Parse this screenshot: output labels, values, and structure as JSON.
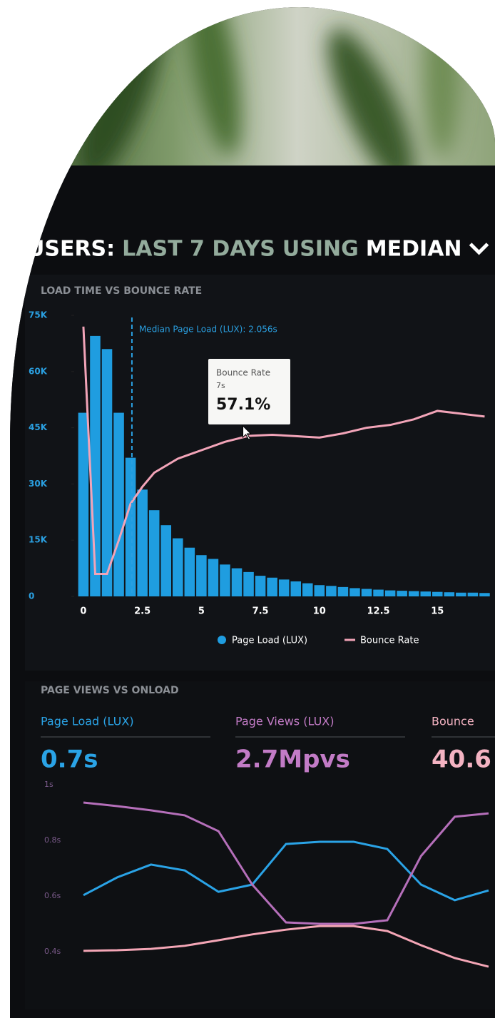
{
  "header": {
    "parts": [
      "USERS:",
      "LAST 7 DAYS",
      "USING",
      "MEDIAN"
    ]
  },
  "chart_data": [
    {
      "type": "bar",
      "title": "LOAD TIME VS BOUNCE RATE",
      "annotation": "Median Page Load (LUX): 2.056s",
      "median": 2.056,
      "x": [
        0,
        0.5,
        1,
        1.5,
        2,
        2.5,
        3,
        3.5,
        4,
        4.5,
        5,
        5.5,
        6,
        6.5,
        7,
        7.5,
        8,
        8.5,
        9,
        9.5,
        10,
        10.5,
        11,
        11.5,
        12,
        12.5,
        13,
        13.5,
        14,
        14.5,
        15,
        15.5,
        16,
        16.5,
        17
      ],
      "xlim": [
        -0.3,
        17.5
      ],
      "xticks": [
        0,
        2.5,
        5,
        7.5,
        10,
        12.5,
        15
      ],
      "ylim": [
        0,
        75000
      ],
      "yticks": [
        {
          "value": 0,
          "label": "0"
        },
        {
          "value": 15000,
          "label": "15K"
        },
        {
          "value": 30000,
          "label": "30K"
        },
        {
          "value": 45000,
          "label": "45K"
        },
        {
          "value": 60000,
          "label": "60K"
        },
        {
          "value": 75000,
          "label": "75K"
        }
      ],
      "y2lim": [
        0,
        100
      ],
      "series": [
        {
          "name": "Page Load (LUX)",
          "color": "#1f9de0",
          "values": [
            49000,
            69500,
            66000,
            49000,
            37000,
            28500,
            23000,
            19000,
            15500,
            13000,
            11000,
            10000,
            8500,
            7500,
            6500,
            5500,
            5000,
            4500,
            4000,
            3500,
            3000,
            2800,
            2500,
            2200,
            2000,
            1800,
            1600,
            1500,
            1400,
            1300,
            1200,
            1100,
            1000,
            1000,
            900
          ]
        },
        {
          "name": "Bounce Rate",
          "color": "#f2a4b8",
          "axis": "y2",
          "x": [
            0,
            0.5,
            1,
            1.5,
            2,
            2.5,
            3,
            4,
            5,
            6,
            7,
            8,
            9,
            10,
            11,
            12,
            13,
            14,
            15,
            16,
            17
          ],
          "values": [
            96,
            8,
            8,
            20,
            33,
            39,
            44,
            49,
            52,
            55,
            57.1,
            57.5,
            57,
            56.5,
            58,
            60,
            61,
            63,
            66,
            65,
            64
          ]
        }
      ],
      "tooltip": {
        "title": "Bounce Rate",
        "x": 7,
        "x_label": "7s",
        "value": 57.1,
        "value_label": "57.1%"
      }
    },
    {
      "type": "line",
      "title": "PAGE VIEWS VS ONLOAD",
      "stats": [
        {
          "label": "Page Load (LUX)",
          "value_label": "0.7s",
          "color": "#2aa3e6"
        },
        {
          "label": "Page Views (LUX)",
          "value_label": "2.7Mpvs",
          "color": "#c27bc6"
        },
        {
          "label": "Bounce",
          "value_label": "40.6",
          "color": "#f4b3c2"
        }
      ],
      "categories": [
        null,
        null,
        null,
        null,
        null,
        null,
        null,
        null,
        null,
        null,
        null,
        null,
        null
      ],
      "ylim": [
        0.3,
        1.0
      ],
      "yticks": [
        {
          "value": 1,
          "label": "1s"
        },
        {
          "value": 0.8,
          "label": "0.8s"
        },
        {
          "value": 0.6,
          "label": "0.6s"
        },
        {
          "value": 0.4,
          "label": "0.4s"
        }
      ],
      "series": [
        {
          "color": "#2aa3e6",
          "values": [
            0.603,
            0.667,
            0.713,
            0.692,
            0.615,
            0.641,
            0.787,
            0.795,
            0.795,
            0.769,
            0.641,
            0.585,
            0.62
          ]
        },
        {
          "color": "#b56fba",
          "values": [
            0.936,
            0.923,
            0.908,
            0.89,
            0.833,
            0.641,
            0.505,
            0.5,
            0.5,
            0.513,
            0.744,
            0.885,
            0.897
          ]
        },
        {
          "color": "#f4a6b6",
          "values": [
            0.403,
            0.405,
            0.41,
            0.421,
            0.441,
            0.462,
            0.479,
            0.492,
            0.492,
            0.474,
            0.423,
            0.377,
            0.346
          ]
        }
      ]
    }
  ]
}
